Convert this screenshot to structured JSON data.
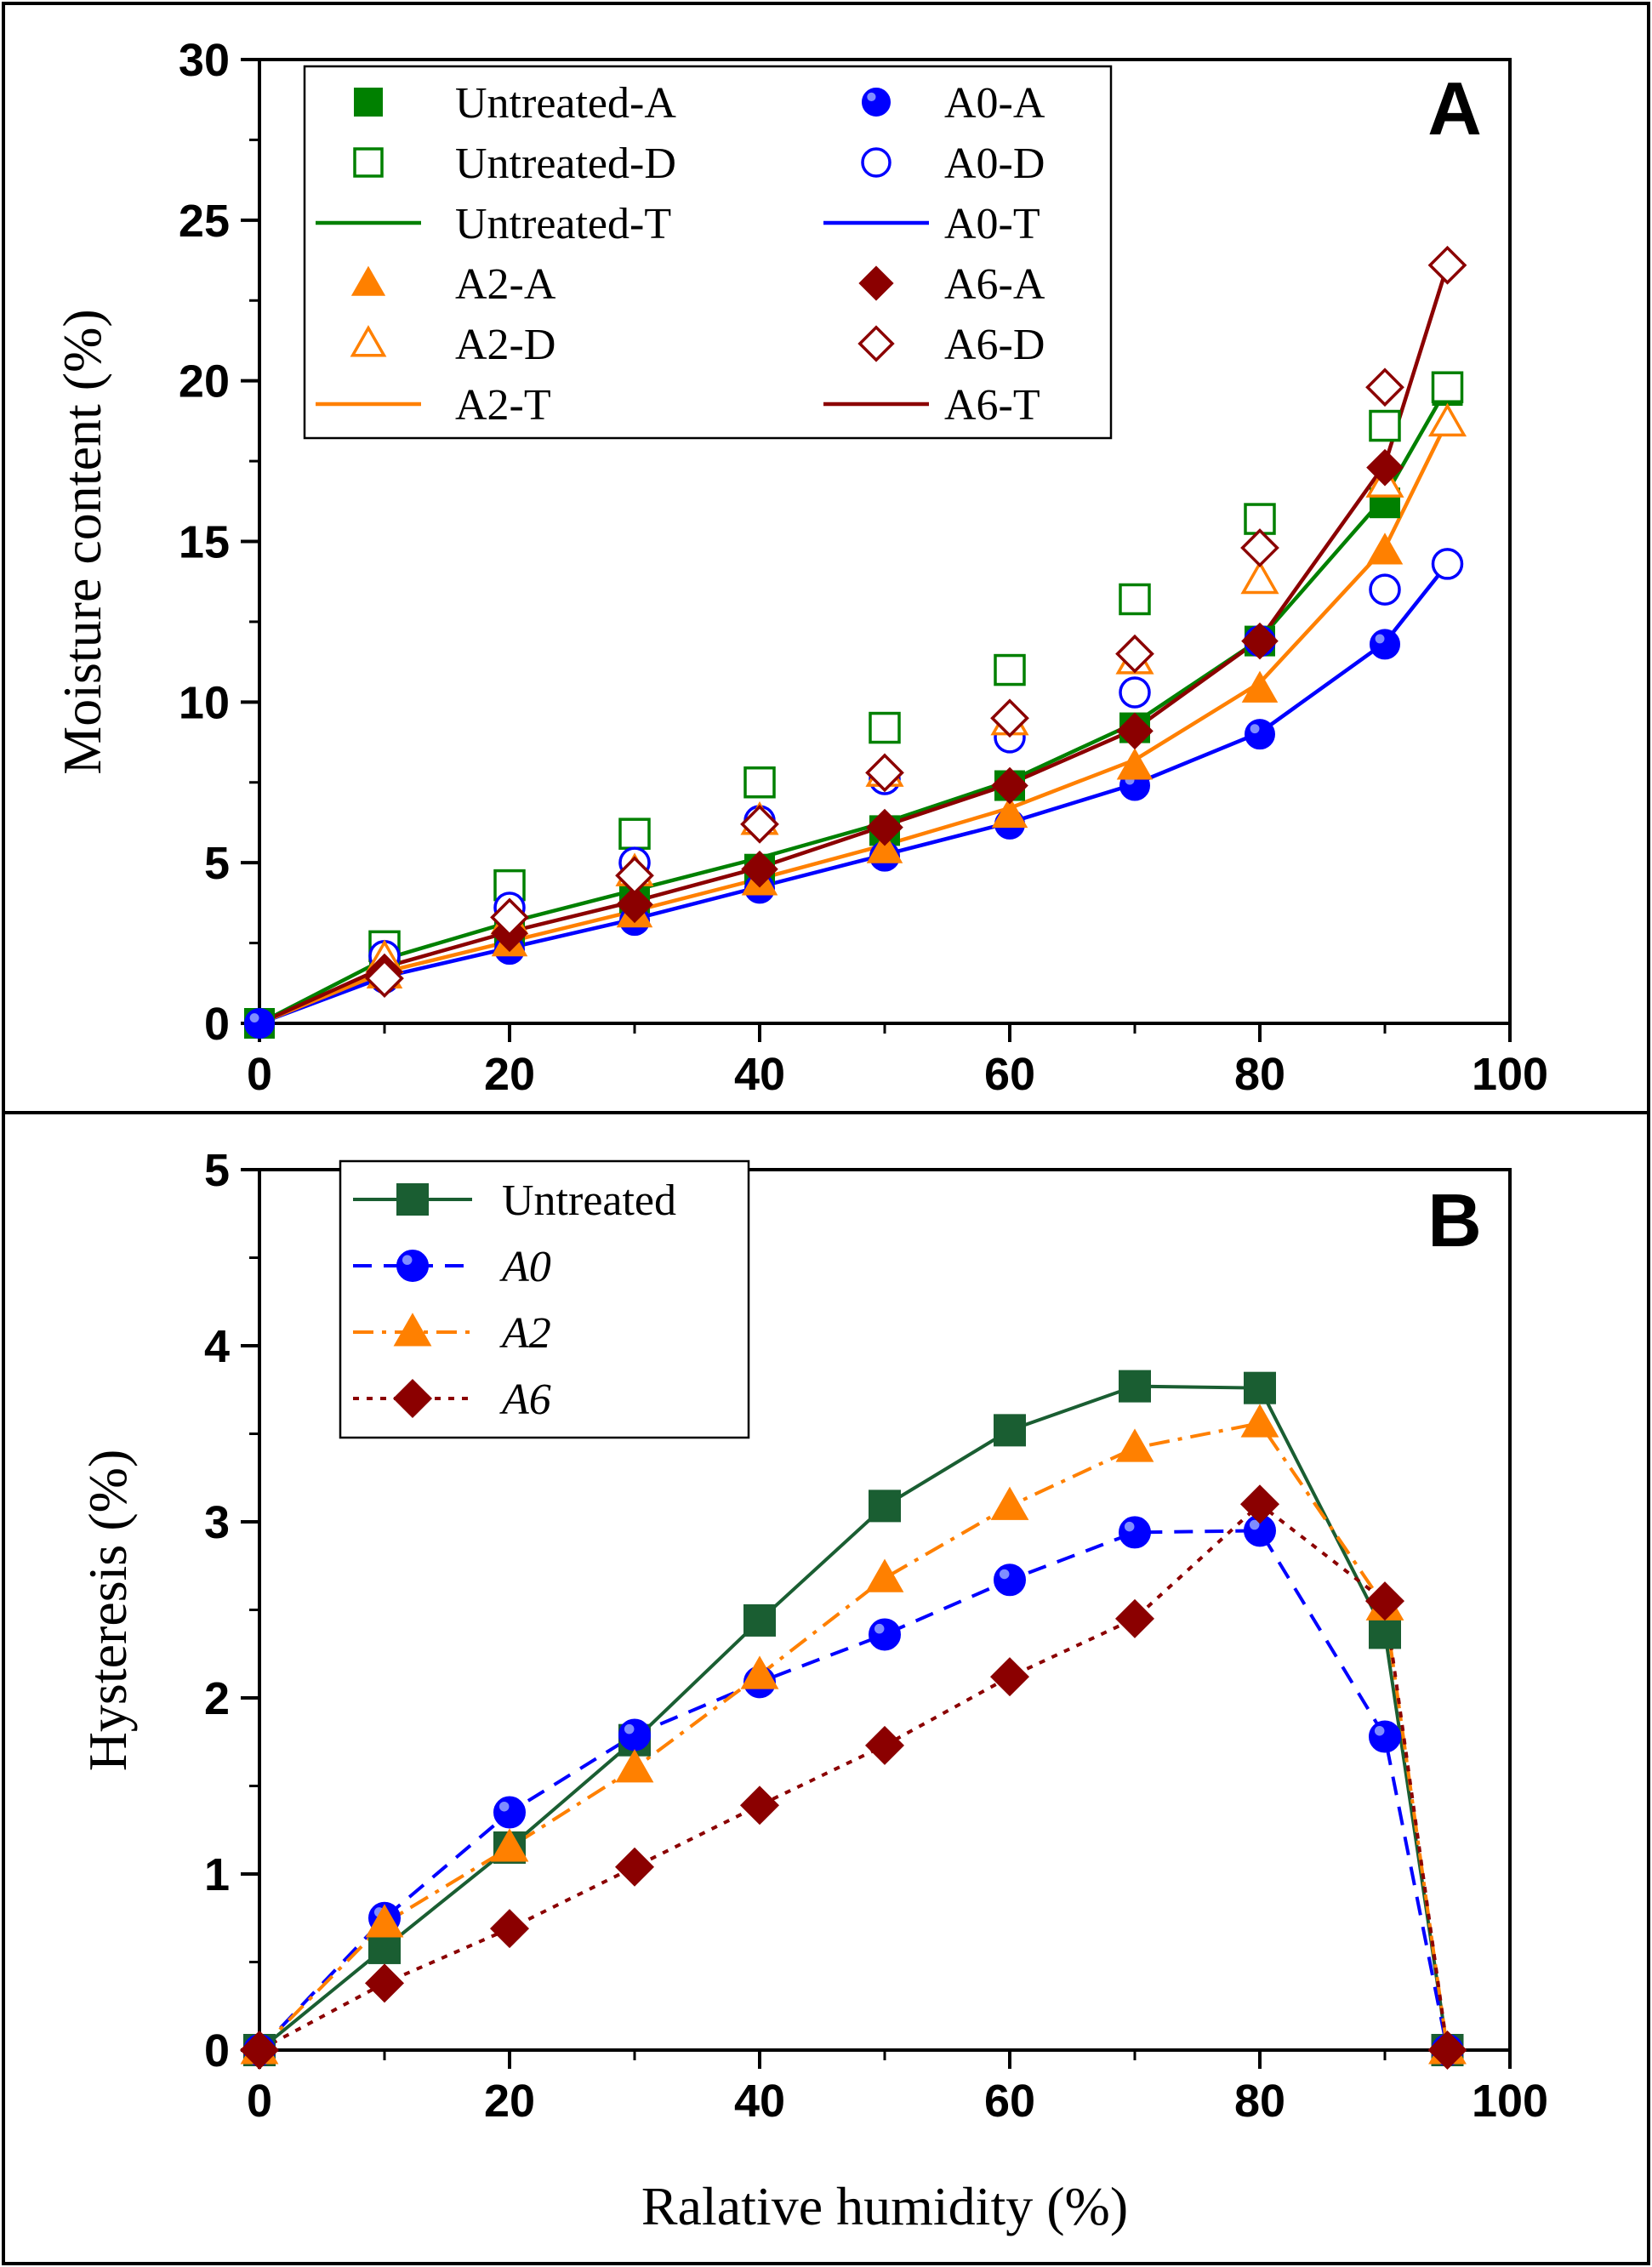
{
  "chart_data": [
    {
      "panel": "A",
      "type": "line",
      "xlabel": "",
      "ylabel": "Moisture content (%)",
      "xlim": [
        0,
        100
      ],
      "ylim": [
        0,
        30
      ],
      "xticks": [
        0,
        20,
        40,
        60,
        80,
        100
      ],
      "yticks": [
        0,
        5,
        10,
        15,
        20,
        25,
        30
      ],
      "legend_position": "top-left",
      "series": [
        {
          "name": "Untreated-A",
          "label": "Untreated-A",
          "kind": "markers",
          "marker": "square",
          "fill": "solid",
          "color": "#008000",
          "x": [
            0,
            10,
            20,
            30,
            40,
            50,
            60,
            70,
            80,
            90,
            95
          ],
          "y": [
            0,
            1.8,
            2.9,
            3.9,
            4.8,
            6.0,
            7.4,
            9.2,
            11.9,
            16.2,
            19.7
          ]
        },
        {
          "name": "Untreated-D",
          "label": "Untreated-D",
          "kind": "markers",
          "marker": "square",
          "fill": "open",
          "color": "#008000",
          "x": [
            10,
            20,
            30,
            40,
            50,
            60,
            70,
            80,
            90,
            95
          ],
          "y": [
            2.4,
            4.3,
            5.9,
            7.5,
            9.2,
            11.0,
            13.2,
            15.7,
            18.6,
            19.8
          ]
        },
        {
          "name": "Untreated-T",
          "label": "Untreated-T",
          "kind": "line",
          "color": "#008000",
          "x": [
            0,
            10,
            20,
            30,
            40,
            50,
            60,
            70,
            80,
            90,
            95
          ],
          "y": [
            0,
            2.0,
            3.15,
            4.15,
            5.15,
            6.25,
            7.55,
            9.35,
            11.95,
            16.4,
            19.8
          ]
        },
        {
          "name": "A0-A",
          "label": "A0-A",
          "kind": "markers",
          "marker": "circle",
          "fill": "solid",
          "color": "#0000ff",
          "x": [
            0,
            10,
            20,
            30,
            40,
            50,
            60,
            70,
            80,
            90,
            95
          ],
          "y": [
            0,
            1.4,
            2.3,
            3.2,
            4.2,
            5.2,
            6.2,
            7.4,
            9.0,
            11.8,
            14.3
          ]
        },
        {
          "name": "A0-D",
          "label": "A0-D",
          "kind": "markers",
          "marker": "circle",
          "fill": "open",
          "color": "#0000ff",
          "x": [
            10,
            20,
            30,
            40,
            50,
            60,
            70,
            80,
            90,
            95
          ],
          "y": [
            2.1,
            3.6,
            5.0,
            6.3,
            7.6,
            8.9,
            10.3,
            11.9,
            13.5,
            14.3
          ]
        },
        {
          "name": "A0-T",
          "label": "A0-T",
          "kind": "line",
          "color": "#0000ff",
          "x": [
            0,
            10,
            20,
            30,
            40,
            50,
            60,
            70,
            80,
            90,
            95
          ],
          "y": [
            0,
            1.45,
            2.35,
            3.25,
            4.25,
            5.25,
            6.25,
            7.45,
            9.05,
            11.85,
            14.3
          ]
        },
        {
          "name": "A2-A",
          "label": "A2-A",
          "kind": "markers",
          "marker": "triangle",
          "fill": "solid",
          "color": "#ff8000",
          "x": [
            10,
            20,
            30,
            40,
            50,
            60,
            70,
            80,
            90,
            95
          ],
          "y": [
            1.5,
            2.5,
            3.4,
            4.4,
            5.4,
            6.5,
            8.0,
            10.4,
            14.7,
            18.7
          ]
        },
        {
          "name": "A2-D",
          "label": "A2-D",
          "kind": "markers",
          "marker": "triangle",
          "fill": "open",
          "color": "#ff8000",
          "x": [
            10,
            20,
            30,
            40,
            50,
            60,
            70,
            80,
            90,
            95
          ],
          "y": [
            2.0,
            3.2,
            4.7,
            6.3,
            7.8,
            9.4,
            11.3,
            13.8,
            16.8,
            18.7
          ]
        },
        {
          "name": "A2-T",
          "label": "A2-T",
          "kind": "line",
          "color": "#ff8000",
          "x": [
            0,
            10,
            20,
            30,
            40,
            50,
            60,
            70,
            80,
            90,
            95
          ],
          "y": [
            0,
            1.6,
            2.55,
            3.5,
            4.5,
            5.55,
            6.7,
            8.2,
            10.6,
            14.8,
            18.75
          ]
        },
        {
          "name": "A6-A",
          "label": "A6-A",
          "kind": "markers",
          "marker": "diamond",
          "fill": "solid",
          "color": "#8b0000",
          "x": [
            10,
            20,
            30,
            40,
            50,
            60,
            70,
            80,
            90
          ],
          "y": [
            1.6,
            2.8,
            3.7,
            4.8,
            6.1,
            7.4,
            9.1,
            11.9,
            17.3
          ]
        },
        {
          "name": "A6-D",
          "label": "A6-D",
          "kind": "markers",
          "marker": "diamond",
          "fill": "open",
          "color": "#8b0000",
          "x": [
            10,
            20,
            30,
            40,
            50,
            60,
            70,
            80,
            90,
            95
          ],
          "y": [
            1.4,
            3.3,
            4.6,
            6.2,
            7.8,
            9.5,
            11.5,
            14.8,
            19.8,
            23.6
          ]
        },
        {
          "name": "A6-T",
          "label": "A6-T",
          "kind": "line",
          "color": "#8b0000",
          "x": [
            0,
            10,
            20,
            30,
            40,
            50,
            60,
            70,
            80,
            90,
            95
          ],
          "y": [
            0,
            1.75,
            2.85,
            3.8,
            4.85,
            6.15,
            7.45,
            9.15,
            11.95,
            17.4,
            23.6
          ]
        }
      ]
    },
    {
      "panel": "B",
      "type": "line",
      "xlabel": "Ralative humidity (%)",
      "ylabel": "Hysteresis (%)",
      "xlim": [
        0,
        100
      ],
      "ylim": [
        0,
        5
      ],
      "xticks": [
        0,
        20,
        40,
        60,
        80,
        100
      ],
      "yticks": [
        0,
        1,
        2,
        3,
        4,
        5
      ],
      "legend_position": "top-left",
      "series": [
        {
          "name": "Untreated",
          "label": "Untreated",
          "marker": "square",
          "fill": "solid",
          "color": "#1a5e32",
          "dash": "solid",
          "x": [
            0,
            10,
            20,
            30,
            40,
            50,
            60,
            70,
            80,
            90,
            95
          ],
          "y": [
            0,
            0.58,
            1.15,
            1.76,
            2.44,
            3.09,
            3.52,
            3.77,
            3.76,
            2.37,
            0
          ]
        },
        {
          "name": "A0",
          "label": "A0",
          "marker": "circle",
          "fill": "solid",
          "color": "#0000ff",
          "dash": "dashed",
          "x": [
            0,
            10,
            20,
            30,
            40,
            50,
            60,
            70,
            80,
            90,
            95
          ],
          "y": [
            0,
            0.75,
            1.35,
            1.79,
            2.09,
            2.36,
            2.67,
            2.94,
            2.95,
            1.78,
            0
          ]
        },
        {
          "name": "A2",
          "label": "A2",
          "marker": "triangle",
          "fill": "solid",
          "color": "#ff8000",
          "dash": "dashdot",
          "x": [
            0,
            10,
            20,
            30,
            40,
            50,
            60,
            70,
            80,
            90,
            95
          ],
          "y": [
            0,
            0.72,
            1.15,
            1.6,
            2.13,
            2.68,
            3.09,
            3.42,
            3.56,
            2.52,
            0
          ]
        },
        {
          "name": "A6",
          "label": "A6",
          "marker": "diamond",
          "fill": "solid",
          "color": "#8b0000",
          "dash": "dotted",
          "x": [
            0,
            10,
            20,
            30,
            40,
            50,
            60,
            70,
            80,
            90,
            95
          ],
          "y": [
            0,
            0.38,
            0.69,
            1.04,
            1.39,
            1.73,
            2.12,
            2.45,
            3.1,
            2.55,
            0
          ]
        }
      ]
    }
  ]
}
